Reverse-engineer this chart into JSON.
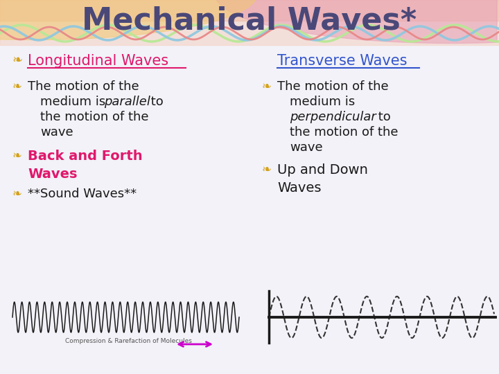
{
  "title": "Mechanical Waves*",
  "title_color": "#4a4878",
  "bg_color": "#f2f2f8",
  "left_heading": "Longitudinal Waves",
  "left_heading_color": "#e0186c",
  "right_heading": "Transverse Waves",
  "right_heading_color": "#3355cc",
  "bullet_color": "#d4a017",
  "text_color": "#1a1a1a",
  "pink_color": "#e0186c",
  "coil_color": "#1a1a1a",
  "sine_color": "#333333",
  "arrow_color": "#cc00cc",
  "axis_color": "#1a1a1a",
  "label_color": "#555555"
}
